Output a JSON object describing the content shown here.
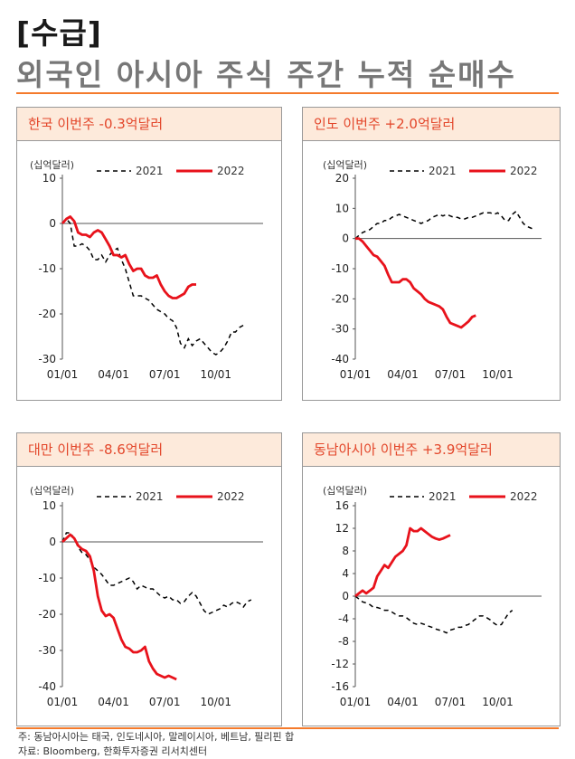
{
  "tag": "[수급]",
  "headline": "외국인 아시아 주식 주간 누적 순매수",
  "footnote": "주: 동남아시아는 태국, 인도네시아, 말레이시아, 베트남, 필리핀 합",
  "source": "자료: Bloomberg, 한화투자증권 리서치센터",
  "colors": {
    "accent": "#f47a2b",
    "title_bg": "#fdeadb",
    "title_text": "#e3462a",
    "line_2022": "#e8121b",
    "line_2021": "#000000"
  },
  "chart_data": [
    {
      "type": "line",
      "title": "한국 이번주 -0.3억달러",
      "unit_label": "(십억달러)",
      "x_ticks": [
        "01/01",
        "04/01",
        "07/01",
        "10/01"
      ],
      "x_tick_weeks": [
        0,
        13,
        26,
        39
      ],
      "ylim": [
        -30,
        10
      ],
      "y_ticks": [
        10,
        0,
        -10,
        -20,
        -30
      ],
      "series": [
        {
          "name": "2021",
          "style": "dashed",
          "values": [
            0,
            1,
            0,
            -5,
            -5,
            -4.5,
            -5,
            -6,
            -8,
            -8,
            -7,
            -8.5,
            -7,
            -6,
            -5.5,
            -8,
            -10,
            -13,
            -16,
            -16,
            -16,
            -16.5,
            -17,
            -18,
            -19,
            -19.5,
            -20,
            -21,
            -21.5,
            -23,
            -26.5,
            -27.5,
            -25.5,
            -27,
            -26,
            -25.5,
            -26.5,
            -27.5,
            -28.5,
            -29,
            -28.5,
            -27.5,
            -26,
            -24,
            -24,
            -23,
            -22.5
          ]
        },
        {
          "name": "2022",
          "style": "solid",
          "values": [
            0,
            1,
            1.5,
            0.5,
            -2,
            -2.5,
            -2.5,
            -3,
            -2,
            -1.5,
            -2,
            -3.5,
            -5,
            -7,
            -7,
            -7.5,
            -7,
            -9,
            -10.5,
            -10,
            -10,
            -11.5,
            -12,
            -12,
            -11.5,
            -13.5,
            -15,
            -16,
            -16.5,
            -16.5,
            -16,
            -15.5,
            -14,
            -13.5,
            -13.5
          ]
        }
      ]
    },
    {
      "type": "line",
      "title": "인도 이번주 +2.0억달러",
      "unit_label": "(십억달러)",
      "x_ticks": [
        "01/01",
        "04/01",
        "07/01",
        "10/01"
      ],
      "x_tick_weeks": [
        0,
        13,
        26,
        39
      ],
      "ylim": [
        -40,
        20
      ],
      "y_ticks": [
        20,
        10,
        0,
        -10,
        -20,
        -30,
        -40
      ],
      "series": [
        {
          "name": "2021",
          "style": "dashed",
          "values": [
            0,
            1,
            2,
            2.5,
            3,
            4,
            5,
            5,
            6,
            6,
            7,
            7.5,
            8,
            7.5,
            7,
            6.5,
            6,
            5.5,
            5,
            5.5,
            6,
            7,
            7.5,
            8,
            7.5,
            8,
            7.5,
            7,
            7,
            6.5,
            6.5,
            7,
            7,
            7.5,
            8,
            8.5,
            8.5,
            8.5,
            8,
            8.5,
            7.5,
            6,
            6,
            8,
            9,
            7,
            5,
            4,
            3.5,
            3
          ]
        },
        {
          "name": "2022",
          "style": "solid",
          "values": [
            0,
            0,
            -1,
            -2.5,
            -4,
            -5.5,
            -6,
            -7.5,
            -9,
            -12,
            -14.5,
            -14.5,
            -14.5,
            -13.5,
            -13.5,
            -14.5,
            -16.5,
            -17.5,
            -18.5,
            -20,
            -21,
            -21.5,
            -22,
            -22.5,
            -23.5,
            -26,
            -28,
            -28.5,
            -29,
            -29.5,
            -28.5,
            -27.5,
            -26,
            -25.5
          ]
        }
      ]
    },
    {
      "type": "line",
      "title": "대만 이번주 -8.6억달러",
      "unit_label": "(십억달러)",
      "x_ticks": [
        "01/01",
        "04/01",
        "07/01",
        "10/01"
      ],
      "x_tick_weeks": [
        0,
        13,
        26,
        39
      ],
      "ylim": [
        -40,
        10
      ],
      "y_ticks": [
        10,
        0,
        -10,
        -20,
        -30,
        -40
      ],
      "series": [
        {
          "name": "2021",
          "style": "dashed",
          "values": [
            0,
            2.5,
            2.5,
            1,
            -1.5,
            -3,
            -3.5,
            -5,
            -7,
            -8,
            -9,
            -10.5,
            -12,
            -12,
            -11.5,
            -11,
            -10.5,
            -10,
            -11,
            -13,
            -12,
            -12.5,
            -13,
            -13,
            -14,
            -15,
            -15.5,
            -15,
            -16,
            -16,
            -17,
            -16.5,
            -15,
            -14,
            -15,
            -17,
            -19,
            -20,
            -19.5,
            -19,
            -18.5,
            -17.5,
            -18,
            -17,
            -16.5,
            -17,
            -18,
            -16.5,
            -16
          ]
        },
        {
          "name": "2022",
          "style": "solid",
          "values": [
            0,
            1,
            2,
            1,
            -1,
            -2,
            -2.5,
            -4,
            -8,
            -15,
            -19,
            -20.5,
            -20,
            -21,
            -24,
            -27,
            -29,
            -29.5,
            -30.5,
            -30.5,
            -30,
            -29,
            -33,
            -35,
            -36.5,
            -37,
            -37.5,
            -37,
            -37.5,
            -38
          ]
        }
      ]
    },
    {
      "type": "line",
      "title": "동남아시아 이번주 +3.9억달러",
      "unit_label": "(십억달러)",
      "x_ticks": [
        "01/01",
        "04/01",
        "07/01",
        "10/01"
      ],
      "x_tick_weeks": [
        0,
        13,
        26,
        39
      ],
      "ylim": [
        -16,
        16
      ],
      "y_ticks": [
        16,
        12,
        8,
        4,
        0,
        -4,
        -8,
        -12,
        -16
      ],
      "series": [
        {
          "name": "2021",
          "style": "dashed",
          "values": [
            0,
            -0.5,
            -1,
            -1.2,
            -1.5,
            -2,
            -2,
            -2.2,
            -2.5,
            -2.5,
            -2.8,
            -3.2,
            -3.5,
            -3.5,
            -3.8,
            -4.3,
            -4.8,
            -5,
            -4.8,
            -5,
            -5.3,
            -5.5,
            -5.8,
            -6,
            -6.2,
            -6.5,
            -6,
            -5.8,
            -5.5,
            -5.5,
            -5.2,
            -5,
            -4.5,
            -4,
            -3.5,
            -3.5,
            -3.8,
            -4.2,
            -4.8,
            -5.2,
            -5,
            -4,
            -3,
            -2.5
          ]
        },
        {
          "name": "2022",
          "style": "solid",
          "values": [
            0,
            0.5,
            1,
            0.5,
            1,
            1.5,
            3.5,
            4.5,
            5.5,
            5,
            6,
            7,
            7.5,
            8,
            9,
            12,
            11.5,
            11.5,
            12,
            11.5,
            11,
            10.5,
            10.2,
            10,
            10.2,
            10.5,
            10.8
          ]
        }
      ]
    }
  ]
}
